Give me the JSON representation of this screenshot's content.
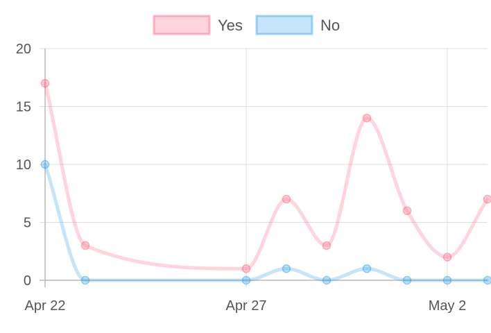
{
  "chart_data": {
    "type": "line",
    "title": "",
    "xlabel": "",
    "ylabel": "",
    "x": [
      "Apr 22",
      "Apr 23",
      "Apr 27",
      "Apr 28",
      "Apr 29",
      "Apr 30",
      "May 1",
      "May 2",
      "May 3"
    ],
    "x_day_index": [
      0,
      1,
      5,
      6,
      7,
      8,
      9,
      10,
      11
    ],
    "x_ticks": [
      {
        "label": "Apr 22",
        "day_index": 0
      },
      {
        "label": "Apr 27",
        "day_index": 5
      },
      {
        "label": "May 2",
        "day_index": 10
      }
    ],
    "ylim": [
      0,
      20
    ],
    "y_ticks": [
      0,
      5,
      10,
      15,
      20
    ],
    "grid": true,
    "legend_position": "top-center",
    "series": [
      {
        "name": "Yes",
        "values": [
          17,
          3,
          1,
          7,
          3,
          14,
          6,
          2,
          7
        ],
        "color": "#ff6384"
      },
      {
        "name": "No",
        "values": [
          10,
          0,
          0,
          1,
          0,
          1,
          0,
          0,
          0
        ],
        "color": "#36a2eb"
      }
    ]
  }
}
